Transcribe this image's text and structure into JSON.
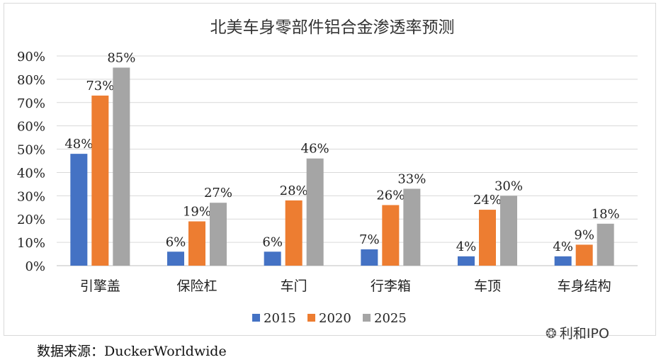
{
  "chart_data": {
    "type": "bar",
    "title": "北美车身零部件铝合金渗透率预测",
    "categories": [
      "引擎盖",
      "保险杠",
      "车门",
      "行李箱",
      "车顶",
      "车身结构"
    ],
    "series": [
      {
        "name": "2015",
        "color": "#4472c4",
        "values": [
          48,
          6,
          6,
          7,
          4,
          4
        ],
        "labels": [
          "48%",
          "6%",
          "6%",
          "7%",
          "4%",
          "4%"
        ]
      },
      {
        "name": "2020",
        "color": "#ed7d31",
        "values": [
          73,
          19,
          28,
          26,
          24,
          9
        ],
        "labels": [
          "73%",
          "19%",
          "28%",
          "26%",
          "24%",
          "9%"
        ]
      },
      {
        "name": "2025",
        "color": "#a5a5a5",
        "values": [
          85,
          27,
          46,
          33,
          30,
          18
        ],
        "labels": [
          "85%",
          "27%",
          "46%",
          "33%",
          "30%",
          "18%"
        ]
      }
    ],
    "ylim": [
      0,
      90
    ],
    "yticks": [
      "0%",
      "10%",
      "20%",
      "30%",
      "40%",
      "50%",
      "60%",
      "70%",
      "80%",
      "90%"
    ],
    "grid": true,
    "legend": "bottom"
  },
  "source": "数据来源：DuckerWorldwide",
  "watermark": "利和IPO",
  "watermark_icon": "wechat-icon"
}
